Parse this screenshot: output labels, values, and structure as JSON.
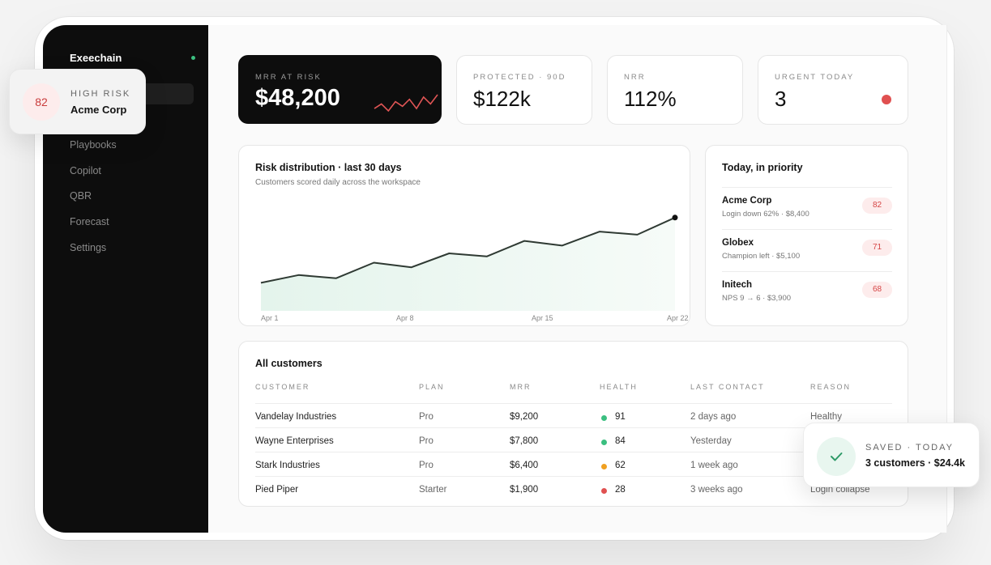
{
  "app": {
    "brand": "Exeechain"
  },
  "sidebar": {
    "items": [
      {
        "label": "Playbooks"
      },
      {
        "label": "Copilot"
      },
      {
        "label": "QBR"
      },
      {
        "label": "Forecast"
      },
      {
        "label": "Settings"
      }
    ]
  },
  "kpis": [
    {
      "label": "MRR AT RISK",
      "value": "$48,200"
    },
    {
      "label": "PROTECTED · 90D",
      "value": "$122k"
    },
    {
      "label": "NRR",
      "value": "112%"
    },
    {
      "label": "URGENT TODAY",
      "value": "3"
    }
  ],
  "risk_chart": {
    "title": "Risk distribution · last 30 days",
    "subtitle": "Customers scored daily across the workspace",
    "x_labels": [
      "Apr 1",
      "Apr 8",
      "Apr 15",
      "Apr 22"
    ]
  },
  "chart_data": {
    "type": "area",
    "title": "Risk distribution · last 30 days",
    "x": [
      "Apr 1",
      "Apr 3",
      "Apr 5",
      "Apr 7",
      "Apr 9",
      "Apr 11",
      "Apr 13",
      "Apr 15",
      "Apr 17",
      "Apr 19",
      "Apr 21",
      "Apr 22"
    ],
    "values": [
      18,
      23,
      21,
      31,
      28,
      37,
      35,
      45,
      42,
      51,
      49,
      60
    ],
    "xlabel": "",
    "ylabel": "",
    "ylim": [
      0,
      75
    ],
    "grid": false,
    "colors": {
      "line": "#2f3a33",
      "fill": "#e7f5ee",
      "endpoint": "#111111"
    }
  },
  "sparkline": {
    "values": [
      4,
      6,
      3,
      7,
      5,
      8,
      4,
      9,
      6,
      10
    ],
    "color": "#e05555"
  },
  "priority": {
    "title": "Today, in priority",
    "items": [
      {
        "name": "Acme Corp",
        "detail": "Login down 62% · $8,400",
        "score": "82"
      },
      {
        "name": "Globex",
        "detail": "Champion left · $5,100",
        "score": "71"
      },
      {
        "name": "Initech",
        "detail": "NPS 9 → 6 · $3,900",
        "score": "68"
      }
    ]
  },
  "customers": {
    "title": "All customers",
    "columns": [
      "CUSTOMER",
      "PLAN",
      "MRR",
      "HEALTH",
      "LAST CONTACT",
      "REASON"
    ],
    "rows": [
      {
        "customer": "Vandelay Industries",
        "plan": "Pro",
        "mrr": "$9,200",
        "health": "91",
        "health_color": "#3bbf80",
        "last_contact": "2 days ago",
        "reason": "Healthy"
      },
      {
        "customer": "Wayne Enterprises",
        "plan": "Pro",
        "mrr": "$7,800",
        "health": "84",
        "health_color": "#3bbf80",
        "last_contact": "Yesterday",
        "reason": ""
      },
      {
        "customer": "Stark Industries",
        "plan": "Pro",
        "mrr": "$6,400",
        "health": "62",
        "health_color": "#f0a020",
        "last_contact": "1 week ago",
        "reason": ""
      },
      {
        "customer": "Pied Piper",
        "plan": "Starter",
        "mrr": "$1,900",
        "health": "28",
        "health_color": "#e05050",
        "last_contact": "3 weeks ago",
        "reason": "Login collapse"
      }
    ]
  },
  "risk_popup": {
    "score": "82",
    "label": "HIGH RISK",
    "name": "Acme Corp"
  },
  "saved_popup": {
    "label": "SAVED · TODAY",
    "value": "3 customers · $24.4k"
  },
  "colors": {
    "urgent_dot": "#e05050",
    "accent_green": "#3bbf80",
    "risk_red": "#d64545"
  }
}
